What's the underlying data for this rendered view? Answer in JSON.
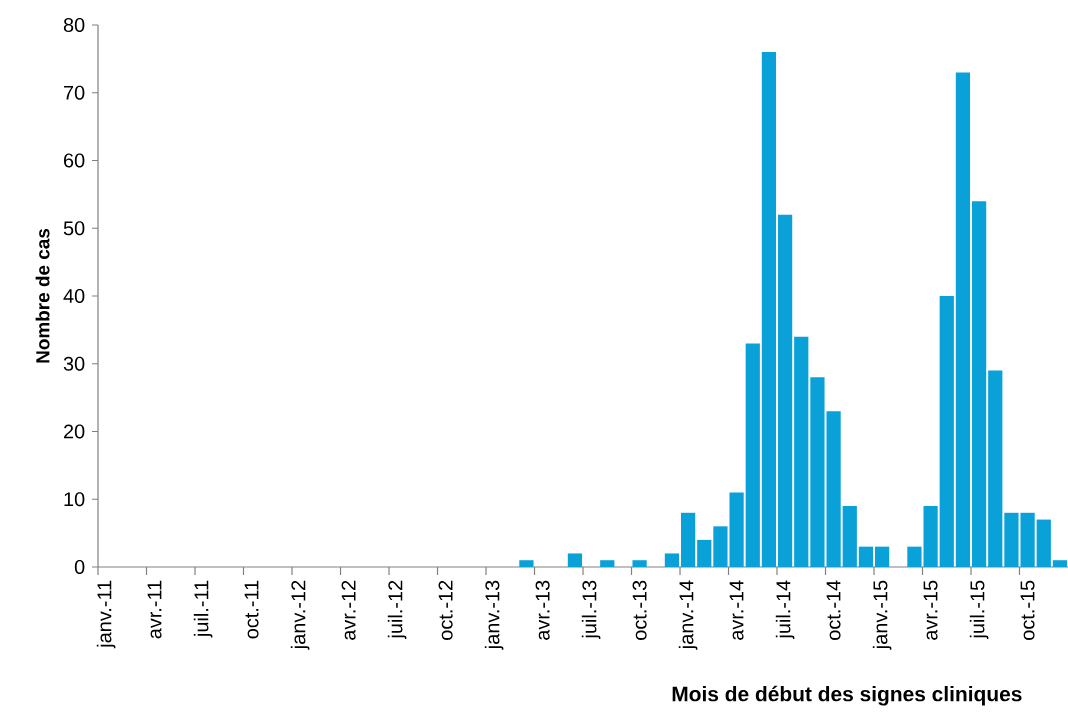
{
  "chart_data": {
    "type": "bar",
    "xlabel": "Mois de début des signes cliniques",
    "ylabel": "Nombre de cas",
    "categories": [
      "janv.-11",
      null,
      null,
      "avr.-11",
      null,
      null,
      "juil.-11",
      null,
      null,
      "oct.-11",
      null,
      null,
      "janv.-12",
      null,
      null,
      "avr.-12",
      null,
      null,
      "juil.-12",
      null,
      null,
      "oct.-12",
      null,
      null,
      "janv.-13",
      null,
      null,
      "avr.-13",
      null,
      null,
      "juil.-13",
      null,
      null,
      "oct.-13",
      null,
      null,
      "janv.-14",
      null,
      null,
      "avr.-14",
      null,
      null,
      "juil.-14",
      null,
      null,
      "oct.-14",
      null,
      null,
      "janv.-15",
      null,
      null,
      "avr.-15",
      null,
      null,
      "juil.-15",
      null,
      null,
      "oct.-15",
      null,
      null
    ],
    "values": [
      0,
      0,
      0,
      0,
      0,
      0,
      0,
      0,
      0,
      0,
      0,
      0,
      0,
      0,
      0,
      0,
      0,
      0,
      0,
      0,
      0,
      0,
      0,
      0,
      0,
      0,
      1,
      0,
      0,
      2,
      0,
      1,
      0,
      1,
      0,
      2,
      8,
      4,
      6,
      11,
      33,
      76,
      52,
      34,
      28,
      23,
      9,
      3,
      3,
      0,
      3,
      9,
      40,
      73,
      54,
      29,
      8,
      8,
      7,
      1
    ],
    "color": "#0aa1d8",
    "ylim": [
      0,
      80
    ],
    "yticks": [
      0,
      10,
      20,
      30,
      40,
      50,
      60,
      70,
      80
    ]
  }
}
